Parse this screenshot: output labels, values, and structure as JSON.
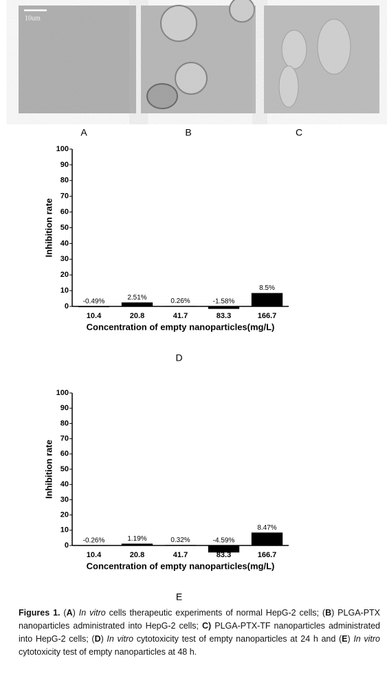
{
  "images": {
    "scale_bar": "10um",
    "labels": [
      "A",
      "B",
      "C"
    ]
  },
  "chart_data": [
    {
      "type": "bar",
      "panel_label": "D",
      "xlabel": "Concentration of empty nanoparticles(mg/L)",
      "ylabel": "Inhibition rate",
      "categories": [
        "10.4",
        "20.8",
        "41.7",
        "83.3",
        "166.7"
      ],
      "values": [
        -0.49,
        2.51,
        0.26,
        -1.58,
        8.5
      ],
      "value_labels": [
        "-0.49%",
        "2.51%",
        "0.26%",
        "-1.58%",
        "8.5%"
      ],
      "color": "#000000",
      "ylim": [
        0,
        100
      ],
      "yticks": [
        0,
        10,
        20,
        30,
        40,
        50,
        60,
        70,
        80,
        90,
        100
      ]
    },
    {
      "type": "bar",
      "panel_label": "E",
      "xlabel": "Concentration of empty nanoparticles(mg/L)",
      "ylabel": "Inhibition rate",
      "categories": [
        "10.4",
        "20.8",
        "41.7",
        "83.3",
        "166.7"
      ],
      "values": [
        -0.26,
        1.19,
        0.32,
        -4.59,
        8.47
      ],
      "value_labels": [
        "-0.26%",
        "1.19%",
        "0.32%",
        "-4.59%",
        "8.47%"
      ],
      "color": "#000000",
      "ylim": [
        0,
        100
      ],
      "yticks": [
        0,
        10,
        20,
        30,
        40,
        50,
        60,
        70,
        80,
        90,
        100
      ]
    }
  ],
  "caption": [
    {
      "text": "Figures 1.",
      "style": "bold"
    },
    {
      "text": " (",
      "style": "normal"
    },
    {
      "text": "A",
      "style": "bold"
    },
    {
      "text": ") ",
      "style": "normal"
    },
    {
      "text": "In vitro",
      "style": "italic"
    },
    {
      "text": " cells therapeutic experiments of normal HepG-2 cells; (",
      "style": "normal"
    },
    {
      "text": "B",
      "style": "bold"
    },
    {
      "text": ") PLGA-PTX nanoparticles administrated into HepG-2 cells; ",
      "style": "normal"
    },
    {
      "text": "C)",
      "style": "bold"
    },
    {
      "text": " PLGA-PTX-TF nanoparticles administrated into HepG-2 cells; (",
      "style": "normal"
    },
    {
      "text": "D",
      "style": "bold"
    },
    {
      "text": ") ",
      "style": "normal"
    },
    {
      "text": "In vitro",
      "style": "italic"
    },
    {
      "text": " cytotoxicity test of empty nanoparticles at 24 h and (",
      "style": "normal"
    },
    {
      "text": "E",
      "style": "bold"
    },
    {
      "text": ") ",
      "style": "normal"
    },
    {
      "text": "In vitro",
      "style": "italic"
    },
    {
      "text": " cytotoxicity test of empty nanoparticles at 48 h.",
      "style": "normal"
    }
  ]
}
